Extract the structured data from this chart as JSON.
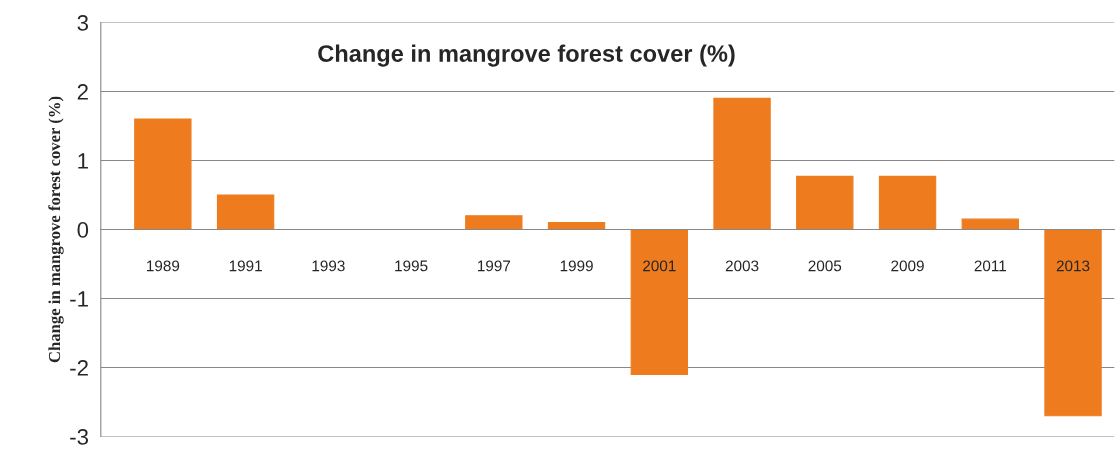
{
  "chart_data": {
    "type": "bar",
    "title": "Change in mangrove forest cover (%)",
    "ylabel": "Change in mangrove forest cover (%)",
    "categories": [
      "1989",
      "1991",
      "1993",
      "1995",
      "1997",
      "1999",
      "2001",
      "2003",
      "2005",
      "2009",
      "2011",
      "2013"
    ],
    "values": [
      1.6,
      0.5,
      0,
      0,
      0.2,
      0.1,
      -2.1,
      1.9,
      0.77,
      0.77,
      0.15,
      -2.7
    ],
    "color": "#ee7c1e",
    "ylim": [
      -3,
      3
    ],
    "yticks": [
      -3,
      -2,
      -1,
      0,
      1,
      2,
      3
    ],
    "grid": "y"
  }
}
